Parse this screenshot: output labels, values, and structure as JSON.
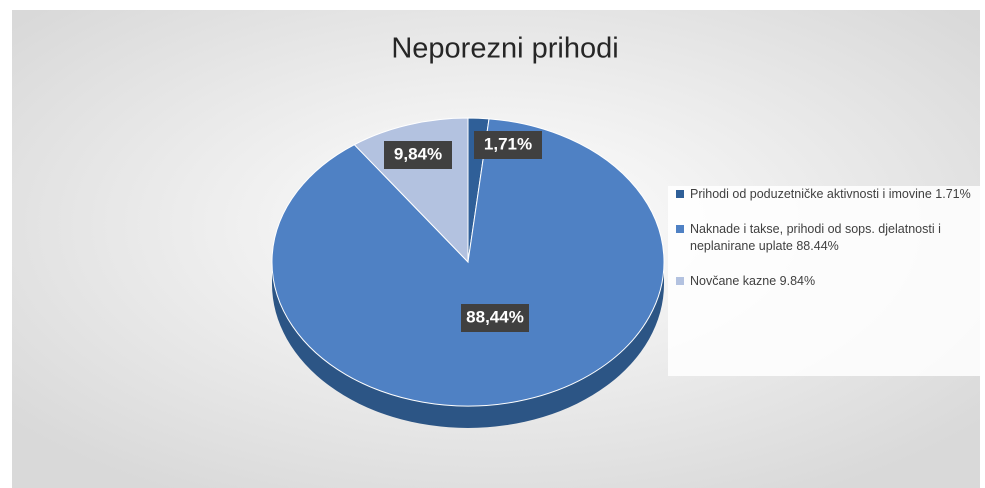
{
  "chart_data": {
    "type": "pie",
    "title": "Neporezni prihodi",
    "categories": [
      "Prihodi od poduzetničke aktivnosti i imovine",
      "Naknade i takse, prihodi od sops. djelatnosti i neplanirane uplate",
      "Novčane kazne"
    ],
    "values": [
      1.71,
      88.44,
      9.84
    ],
    "value_labels": [
      "1,71%",
      "88,44%",
      "9,84%"
    ],
    "legend_value_labels": [
      "1.71%",
      "88.44%",
      "9.84%"
    ],
    "colors": [
      "#2f5f98",
      "#4f81c4",
      "#b3c2e0"
    ],
    "legend": "right"
  }
}
